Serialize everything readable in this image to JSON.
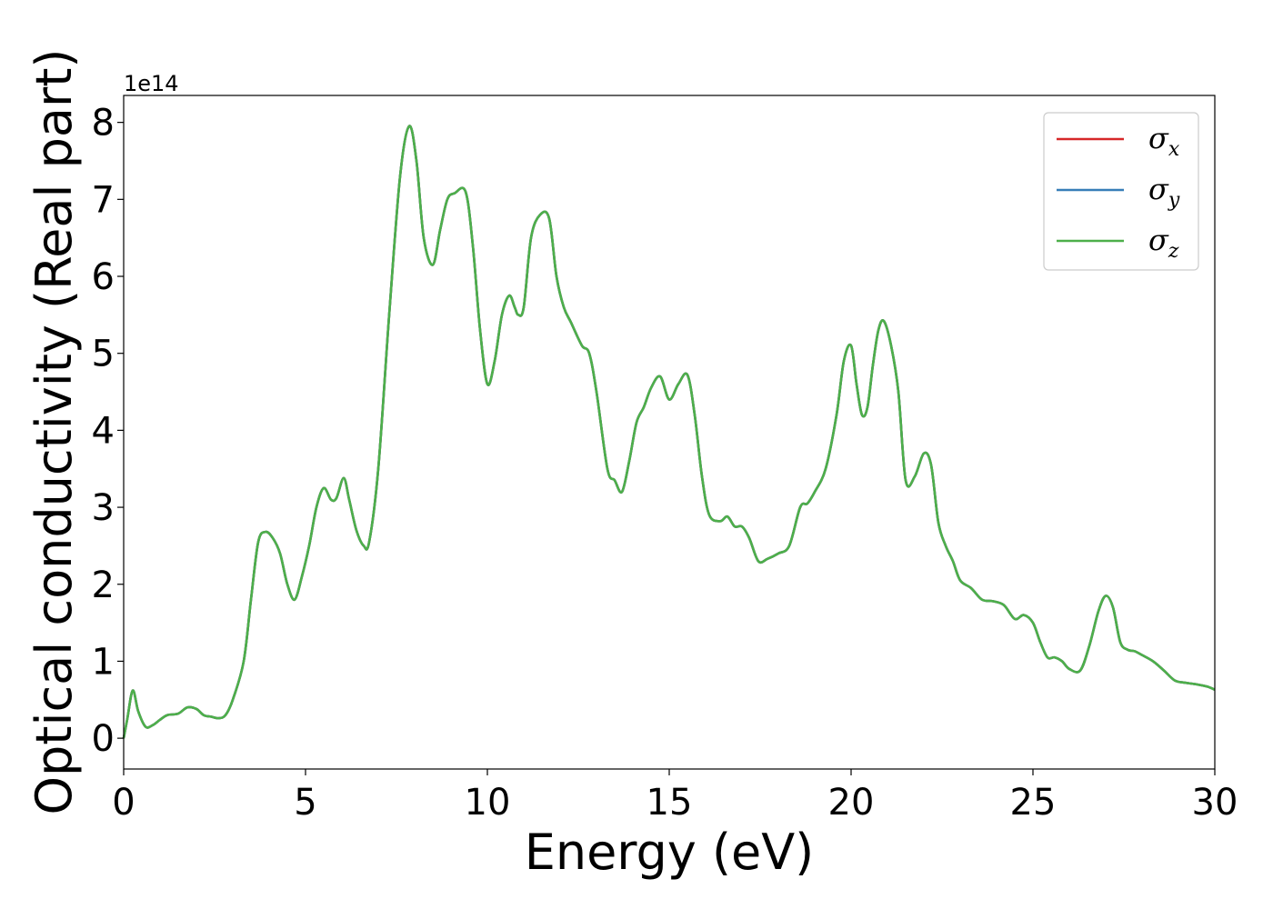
{
  "chart_data": {
    "type": "line",
    "title": "",
    "xlabel": "Energy (eV)",
    "ylabel": "Optical conductivity (Real part)",
    "y_offset_label": "1e14",
    "xlim": [
      0,
      30
    ],
    "ylim": [
      -0.4,
      8.35
    ],
    "x_ticks": [
      0,
      5,
      10,
      15,
      20,
      25,
      30
    ],
    "x_tick_labels": [
      "0",
      "5",
      "10",
      "15",
      "20",
      "25",
      "30"
    ],
    "y_ticks": [
      0,
      1,
      2,
      3,
      4,
      5,
      6,
      7,
      8
    ],
    "y_tick_labels": [
      "0",
      "1",
      "2",
      "3",
      "4",
      "5",
      "6",
      "7",
      "8"
    ],
    "grid": false,
    "legend_position": "upper right",
    "legend": [
      {
        "symbol": "σ",
        "sub": "x",
        "color": "#d62728"
      },
      {
        "symbol": "σ",
        "sub": "y",
        "color": "#377eb8"
      },
      {
        "symbol": "σ",
        "sub": "z",
        "color": "#4daf4a"
      }
    ],
    "x": [
      0,
      0.1,
      0.25,
      0.4,
      0.6,
      0.8,
      1.0,
      1.2,
      1.5,
      1.75,
      2.0,
      2.2,
      2.4,
      2.6,
      2.8,
      3.0,
      3.3,
      3.5,
      3.7,
      3.9,
      4.1,
      4.3,
      4.5,
      4.7,
      4.9,
      5.1,
      5.3,
      5.5,
      5.7,
      5.85,
      6.05,
      6.2,
      6.4,
      6.6,
      6.75,
      7.0,
      7.3,
      7.6,
      7.85,
      8.05,
      8.25,
      8.5,
      8.7,
      8.9,
      9.1,
      9.4,
      9.6,
      9.8,
      10.0,
      10.2,
      10.4,
      10.6,
      10.75,
      10.85,
      11.0,
      11.2,
      11.45,
      11.7,
      11.9,
      12.1,
      12.3,
      12.6,
      12.8,
      13.0,
      13.3,
      13.5,
      13.7,
      13.9,
      14.1,
      14.3,
      14.5,
      14.75,
      15.0,
      15.25,
      15.5,
      15.7,
      15.9,
      16.1,
      16.4,
      16.6,
      16.8,
      17.0,
      17.2,
      17.45,
      17.7,
      18.0,
      18.3,
      18.6,
      18.8,
      19.0,
      19.3,
      19.6,
      19.8,
      20.0,
      20.15,
      20.3,
      20.45,
      20.6,
      20.75,
      20.9,
      21.1,
      21.3,
      21.5,
      21.75,
      22.0,
      22.2,
      22.4,
      22.6,
      22.8,
      23.0,
      23.3,
      23.6,
      23.9,
      24.2,
      24.5,
      24.75,
      25.0,
      25.2,
      25.4,
      25.6,
      25.8,
      26.0,
      26.3,
      26.55,
      26.8,
      27.0,
      27.2,
      27.4,
      27.6,
      27.8,
      28.0,
      28.3,
      28.6,
      28.9,
      29.2,
      29.5,
      29.8,
      30.0
    ],
    "series": [
      {
        "name": "σx",
        "color": "#d62728",
        "values": [
          0.0,
          0.25,
          0.62,
          0.35,
          0.15,
          0.17,
          0.24,
          0.3,
          0.32,
          0.4,
          0.38,
          0.3,
          0.28,
          0.26,
          0.3,
          0.5,
          1.0,
          1.8,
          2.55,
          2.68,
          2.6,
          2.4,
          2.0,
          1.8,
          2.1,
          2.5,
          3.0,
          3.25,
          3.1,
          3.12,
          3.38,
          3.1,
          2.7,
          2.5,
          2.55,
          3.5,
          5.5,
          7.3,
          7.95,
          7.5,
          6.5,
          6.15,
          6.6,
          7.0,
          7.08,
          7.1,
          6.4,
          5.3,
          4.6,
          4.9,
          5.5,
          5.75,
          5.6,
          5.5,
          5.6,
          6.5,
          6.8,
          6.75,
          6.0,
          5.6,
          5.4,
          5.1,
          5.0,
          4.5,
          3.5,
          3.35,
          3.2,
          3.6,
          4.1,
          4.3,
          4.55,
          4.7,
          4.4,
          4.6,
          4.72,
          4.2,
          3.4,
          2.9,
          2.82,
          2.88,
          2.75,
          2.75,
          2.6,
          2.3,
          2.33,
          2.4,
          2.5,
          3.0,
          3.05,
          3.2,
          3.5,
          4.2,
          4.9,
          5.1,
          4.6,
          4.2,
          4.3,
          4.85,
          5.3,
          5.42,
          5.1,
          4.5,
          3.35,
          3.4,
          3.7,
          3.55,
          2.8,
          2.5,
          2.3,
          2.05,
          1.95,
          1.8,
          1.78,
          1.73,
          1.55,
          1.6,
          1.5,
          1.25,
          1.05,
          1.05,
          1.0,
          0.9,
          0.88,
          1.2,
          1.65,
          1.85,
          1.7,
          1.25,
          1.15,
          1.13,
          1.08,
          1.0,
          0.88,
          0.75,
          0.72,
          0.7,
          0.67,
          0.63
        ]
      },
      {
        "name": "σy",
        "color": "#377eb8",
        "values": [
          0.0,
          0.25,
          0.62,
          0.35,
          0.15,
          0.17,
          0.24,
          0.3,
          0.32,
          0.4,
          0.38,
          0.3,
          0.28,
          0.26,
          0.3,
          0.5,
          1.0,
          1.8,
          2.55,
          2.68,
          2.6,
          2.4,
          2.0,
          1.8,
          2.1,
          2.5,
          3.0,
          3.25,
          3.1,
          3.12,
          3.38,
          3.1,
          2.7,
          2.5,
          2.55,
          3.5,
          5.5,
          7.3,
          7.95,
          7.5,
          6.5,
          6.15,
          6.6,
          7.0,
          7.08,
          7.1,
          6.4,
          5.3,
          4.6,
          4.9,
          5.5,
          5.75,
          5.6,
          5.5,
          5.6,
          6.5,
          6.8,
          6.75,
          6.0,
          5.6,
          5.4,
          5.1,
          5.0,
          4.5,
          3.5,
          3.35,
          3.2,
          3.6,
          4.1,
          4.3,
          4.55,
          4.7,
          4.4,
          4.6,
          4.72,
          4.2,
          3.4,
          2.9,
          2.82,
          2.88,
          2.75,
          2.75,
          2.6,
          2.3,
          2.33,
          2.4,
          2.5,
          3.0,
          3.05,
          3.2,
          3.5,
          4.2,
          4.9,
          5.1,
          4.6,
          4.2,
          4.3,
          4.85,
          5.3,
          5.42,
          5.1,
          4.5,
          3.35,
          3.4,
          3.7,
          3.55,
          2.8,
          2.5,
          2.3,
          2.05,
          1.95,
          1.8,
          1.78,
          1.73,
          1.55,
          1.6,
          1.5,
          1.25,
          1.05,
          1.05,
          1.0,
          0.9,
          0.88,
          1.2,
          1.65,
          1.85,
          1.7,
          1.25,
          1.15,
          1.13,
          1.08,
          1.0,
          0.88,
          0.75,
          0.72,
          0.7,
          0.67,
          0.63
        ]
      },
      {
        "name": "σz",
        "color": "#4daf4a",
        "values": [
          0.0,
          0.25,
          0.62,
          0.35,
          0.15,
          0.17,
          0.24,
          0.3,
          0.32,
          0.4,
          0.38,
          0.3,
          0.28,
          0.26,
          0.3,
          0.5,
          1.0,
          1.8,
          2.55,
          2.68,
          2.6,
          2.4,
          2.0,
          1.8,
          2.1,
          2.5,
          3.0,
          3.25,
          3.1,
          3.12,
          3.38,
          3.1,
          2.7,
          2.5,
          2.55,
          3.5,
          5.5,
          7.3,
          7.95,
          7.5,
          6.5,
          6.15,
          6.6,
          7.0,
          7.08,
          7.1,
          6.4,
          5.3,
          4.6,
          4.9,
          5.5,
          5.75,
          5.6,
          5.5,
          5.6,
          6.5,
          6.8,
          6.75,
          6.0,
          5.6,
          5.4,
          5.1,
          5.0,
          4.5,
          3.5,
          3.35,
          3.2,
          3.6,
          4.1,
          4.3,
          4.55,
          4.7,
          4.4,
          4.6,
          4.72,
          4.2,
          3.4,
          2.9,
          2.82,
          2.88,
          2.75,
          2.75,
          2.6,
          2.3,
          2.33,
          2.4,
          2.5,
          3.0,
          3.05,
          3.2,
          3.5,
          4.2,
          4.9,
          5.1,
          4.6,
          4.2,
          4.3,
          4.85,
          5.3,
          5.42,
          5.1,
          4.5,
          3.35,
          3.4,
          3.7,
          3.55,
          2.8,
          2.5,
          2.3,
          2.05,
          1.95,
          1.8,
          1.78,
          1.73,
          1.55,
          1.6,
          1.5,
          1.25,
          1.05,
          1.05,
          1.0,
          0.9,
          0.88,
          1.2,
          1.65,
          1.85,
          1.7,
          1.25,
          1.15,
          1.13,
          1.08,
          1.0,
          0.88,
          0.75,
          0.72,
          0.7,
          0.67,
          0.63
        ]
      }
    ]
  }
}
